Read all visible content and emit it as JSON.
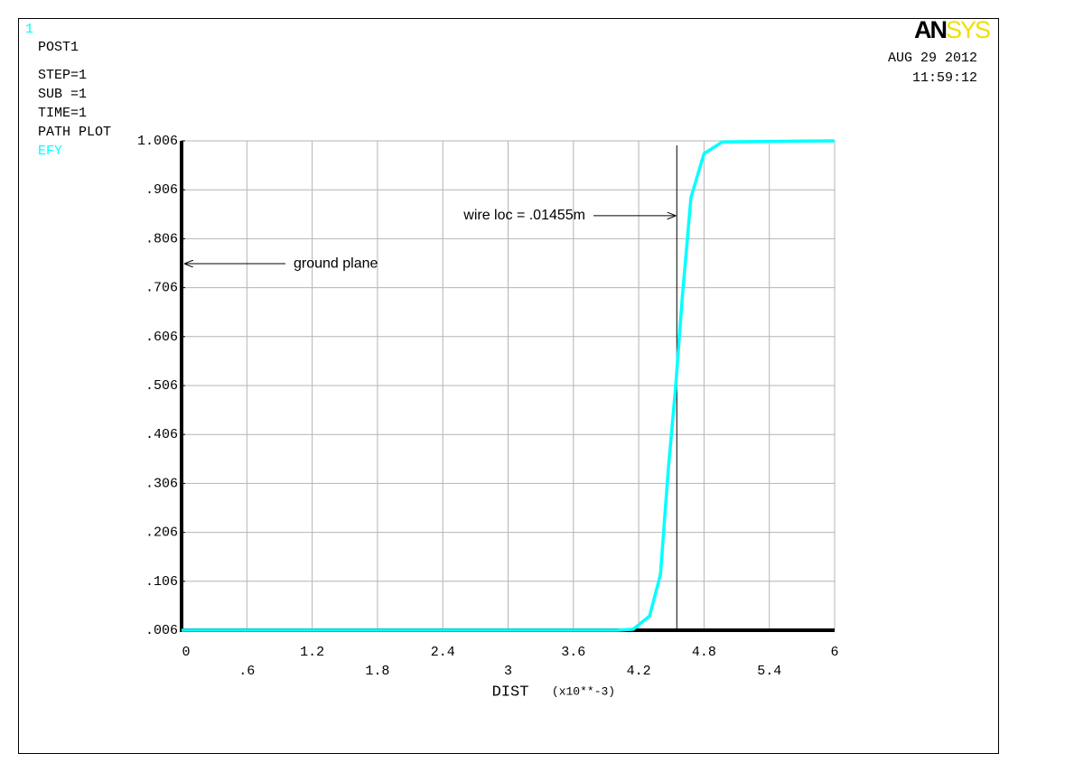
{
  "chart_data": {
    "type": "line",
    "window_number": "1",
    "module": "POST1",
    "info": [
      "STEP=1",
      "SUB =1",
      "TIME=1",
      "PATH PLOT"
    ],
    "logo": {
      "left": "AN",
      "right": "SYS"
    },
    "date": "AUG 29 2012",
    "time": "11:59:12",
    "x_label": "DIST",
    "x_unit": "(x10**-3)",
    "x": [
      0,
      4.0,
      4.15,
      4.3,
      4.4,
      4.47,
      4.54,
      4.6,
      4.68,
      4.8,
      4.97,
      6
    ],
    "series": [
      {
        "name": "EFY",
        "color": "#00ffff",
        "values": [
          0.006,
          0.006,
          0.008,
          0.035,
          0.12,
          0.33,
          0.506,
          0.685,
          0.89,
          0.98,
          1.004,
          1.006
        ]
      }
    ],
    "xlim": [
      0,
      6
    ],
    "ylim": [
      0.006,
      1.006
    ],
    "xticks": [
      0,
      {
        "value": 0.6,
        "label": ".6"
      },
      1.2,
      1.8,
      2.4,
      3,
      3.6,
      4.2,
      4.8,
      5.4,
      6
    ],
    "yticks": [
      {
        "value": 0.006,
        "label": ".006"
      },
      {
        "value": 0.106,
        "label": ".106"
      },
      {
        "value": 0.206,
        "label": ".206"
      },
      {
        "value": 0.306,
        "label": ".306"
      },
      {
        "value": 0.406,
        "label": ".406"
      },
      {
        "value": 0.506,
        "label": ".506"
      },
      {
        "value": 0.606,
        "label": ".606"
      },
      {
        "value": 0.706,
        "label": ".706"
      },
      {
        "value": 0.806,
        "label": ".806"
      },
      {
        "value": 0.906,
        "label": ".906"
      },
      1.006
    ],
    "grid": true,
    "marker_x": 4.55,
    "annotations": [
      {
        "text": "ground plane",
        "y": 0.755
      },
      {
        "text": "wire loc = .01455m",
        "y": 0.853
      }
    ]
  }
}
